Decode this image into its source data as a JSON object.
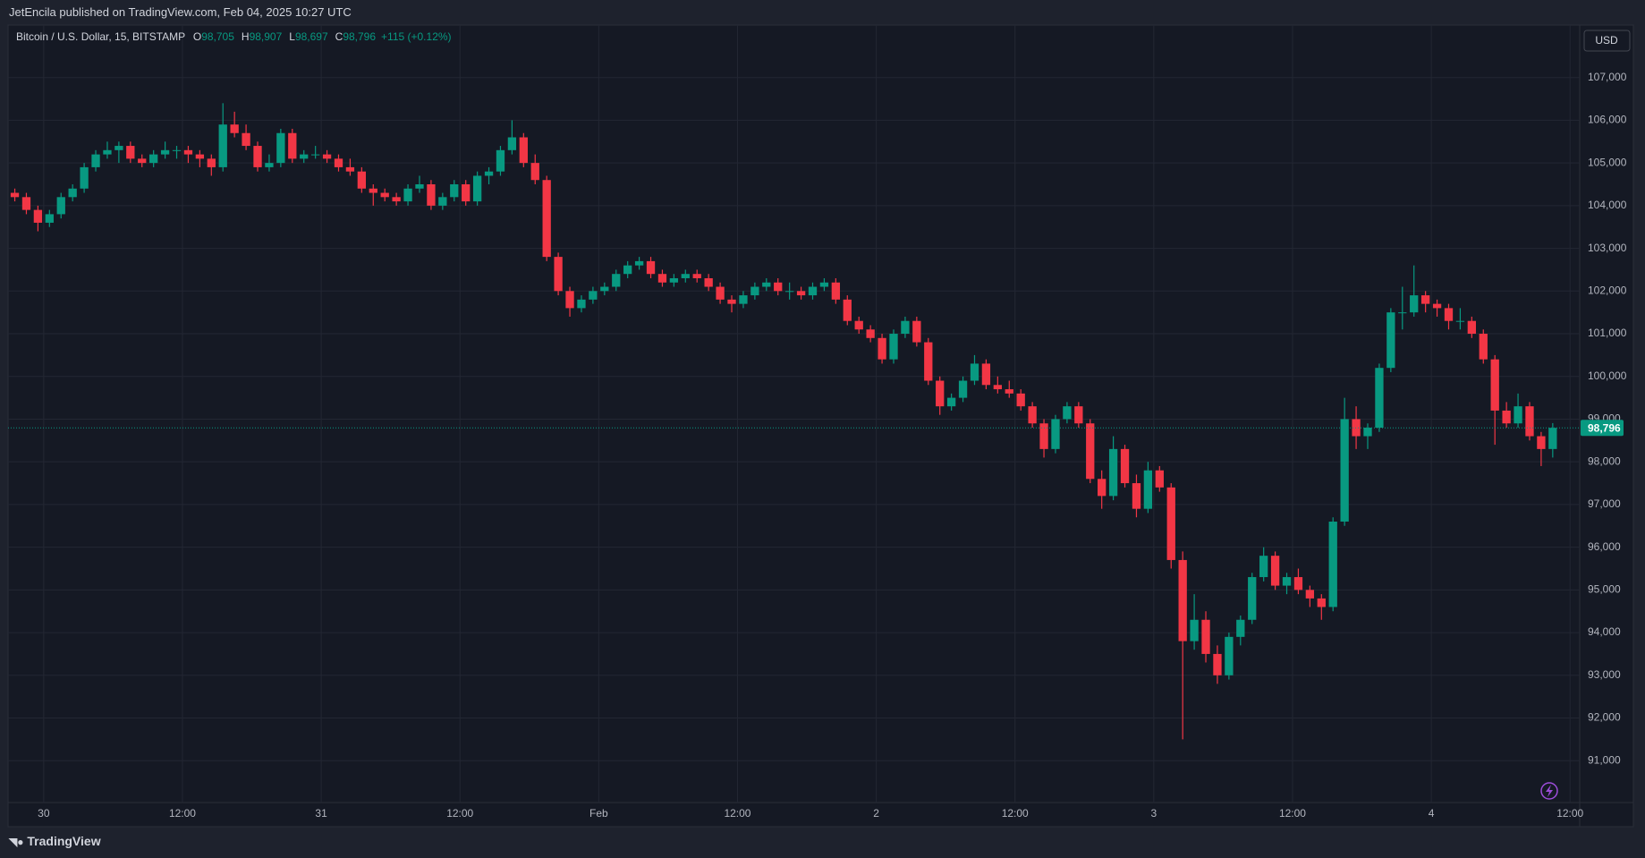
{
  "header": {
    "published": "JetEncila published on TradingView.com, Feb 04, 2025 10:27 UTC",
    "brand": "TradingView"
  },
  "chart_data": {
    "type": "candlestick",
    "title": "Bitcoin / U.S. Dollar, 15, BITSTAMP",
    "legend": [
      {
        "key": "O",
        "value": 98705,
        "label": "98,705"
      },
      {
        "key": "H",
        "value": 98907,
        "label": "98,907"
      },
      {
        "key": "L",
        "value": 98697,
        "label": "98,697"
      },
      {
        "key": "C",
        "value": 98796,
        "label": "98,796"
      }
    ],
    "change": "+115 (+0.12%)",
    "currency": "USD",
    "up_color": "#089981",
    "down_color": "#f23645",
    "grid": true,
    "last_price": {
      "value": 98796,
      "label": "98,796"
    },
    "xlim": [
      "01-29 20:55",
      "02-04 12:50"
    ],
    "xticks": [
      {
        "value": "01-30 00:00",
        "label": "30"
      },
      {
        "value": "01-30 12:00",
        "label": "12:00"
      },
      {
        "value": "01-31 00:00",
        "label": "31"
      },
      {
        "value": "01-31 12:00",
        "label": "12:00"
      },
      {
        "value": "02-01 00:00",
        "label": "Feb"
      },
      {
        "value": "02-01 12:00",
        "label": "12:00"
      },
      {
        "value": "02-02 00:00",
        "label": "2"
      },
      {
        "value": "02-02 12:00",
        "label": "12:00"
      },
      {
        "value": "02-03 00:00",
        "label": "3"
      },
      {
        "value": "02-03 12:00",
        "label": "12:00"
      },
      {
        "value": "02-04 00:00",
        "label": "4"
      },
      {
        "value": "02-04 12:00",
        "label": "12:00"
      }
    ],
    "ylim": [
      90020,
      108230
    ],
    "yticks": [
      {
        "value": 91000,
        "label": "91,000"
      },
      {
        "value": 92000,
        "label": "92,000"
      },
      {
        "value": 93000,
        "label": "93,000"
      },
      {
        "value": 94000,
        "label": "94,000"
      },
      {
        "value": 95000,
        "label": "95,000"
      },
      {
        "value": 96000,
        "label": "96,000"
      },
      {
        "value": 97000,
        "label": "97,000"
      },
      {
        "value": 98000,
        "label": "98,000"
      },
      {
        "value": 99000,
        "label": "99,000"
      },
      {
        "value": 100000,
        "label": "100,000"
      },
      {
        "value": 101000,
        "label": "101,000"
      },
      {
        "value": 102000,
        "label": "102,000"
      },
      {
        "value": 103000,
        "label": "103,000"
      },
      {
        "value": 104000,
        "label": "104,000"
      },
      {
        "value": 105000,
        "label": "105,000"
      },
      {
        "value": 106000,
        "label": "106,000"
      },
      {
        "value": 107000,
        "label": "107,000"
      }
    ],
    "x": [
      "01-29 21:00",
      "01-29 22:00",
      "01-29 23:00",
      "01-30 00:00",
      "01-30 01:00",
      "01-30 02:00",
      "01-30 03:00",
      "01-30 04:00",
      "01-30 05:00",
      "01-30 06:00",
      "01-30 07:00",
      "01-30 08:00",
      "01-30 09:00",
      "01-30 10:00",
      "01-30 11:00",
      "01-30 12:00",
      "01-30 13:00",
      "01-30 14:00",
      "01-30 15:00",
      "01-30 16:00",
      "01-30 17:00",
      "01-30 18:00",
      "01-30 19:00",
      "01-30 20:00",
      "01-30 21:00",
      "01-30 22:00",
      "01-30 23:00",
      "01-31 00:00",
      "01-31 01:00",
      "01-31 02:00",
      "01-31 03:00",
      "01-31 04:00",
      "01-31 05:00",
      "01-31 06:00",
      "01-31 07:00",
      "01-31 08:00",
      "01-31 09:00",
      "01-31 10:00",
      "01-31 11:00",
      "01-31 12:00",
      "01-31 13:00",
      "01-31 14:00",
      "01-31 15:00",
      "01-31 16:00",
      "01-31 17:00",
      "01-31 18:00",
      "01-31 19:00",
      "01-31 20:00",
      "01-31 21:00",
      "01-31 22:00",
      "01-31 23:00",
      "02-01 00:00",
      "02-01 01:00",
      "02-01 02:00",
      "02-01 03:00",
      "02-01 04:00",
      "02-01 05:00",
      "02-01 06:00",
      "02-01 07:00",
      "02-01 08:00",
      "02-01 09:00",
      "02-01 10:00",
      "02-01 11:00",
      "02-01 12:00",
      "02-01 13:00",
      "02-01 14:00",
      "02-01 15:00",
      "02-01 16:00",
      "02-01 17:00",
      "02-01 18:00",
      "02-01 19:00",
      "02-01 20:00",
      "02-01 21:00",
      "02-01 22:00",
      "02-01 23:00",
      "02-02 00:00",
      "02-02 01:00",
      "02-02 02:00",
      "02-02 03:00",
      "02-02 04:00",
      "02-02 05:00",
      "02-02 06:00",
      "02-02 07:00",
      "02-02 08:00",
      "02-02 09:00",
      "02-02 10:00",
      "02-02 11:00",
      "02-02 12:00",
      "02-02 13:00",
      "02-02 14:00",
      "02-02 15:00",
      "02-02 16:00",
      "02-02 17:00",
      "02-02 18:00",
      "02-02 19:00",
      "02-02 20:00",
      "02-02 21:00",
      "02-02 22:00",
      "02-02 23:00",
      "02-03 00:00",
      "02-03 01:00",
      "02-03 02:00",
      "02-03 03:00",
      "02-03 04:00",
      "02-03 05:00",
      "02-03 06:00",
      "02-03 07:00",
      "02-03 08:00",
      "02-03 09:00",
      "02-03 10:00",
      "02-03 11:00",
      "02-03 12:00",
      "02-03 13:00",
      "02-03 14:00",
      "02-03 15:00",
      "02-03 16:00",
      "02-03 17:00",
      "02-03 18:00",
      "02-03 19:00",
      "02-03 20:00",
      "02-03 21:00",
      "02-03 22:00",
      "02-03 23:00",
      "02-04 00:00",
      "02-04 01:00",
      "02-04 02:00",
      "02-04 03:00",
      "02-04 04:00",
      "02-04 05:00",
      "02-04 06:00",
      "02-04 07:00",
      "02-04 08:00",
      "02-04 09:00",
      "02-04 10:00"
    ],
    "ohlc": [
      [
        104300,
        104400,
        104100,
        104200
      ],
      [
        104200,
        104300,
        103800,
        103900
      ],
      [
        103900,
        104000,
        103400,
        103600
      ],
      [
        103600,
        103900,
        103500,
        103800
      ],
      [
        103800,
        104300,
        103700,
        104200
      ],
      [
        104200,
        104500,
        104100,
        104400
      ],
      [
        104400,
        105000,
        104300,
        104900
      ],
      [
        104900,
        105300,
        104800,
        105200
      ],
      [
        105200,
        105500,
        105100,
        105300
      ],
      [
        105300,
        105500,
        105000,
        105400
      ],
      [
        105400,
        105500,
        105000,
        105100
      ],
      [
        105100,
        105200,
        104900,
        105000
      ],
      [
        105000,
        105300,
        104900,
        105200
      ],
      [
        105200,
        105500,
        105100,
        105300
      ],
      [
        105300,
        105400,
        105100,
        105300
      ],
      [
        105300,
        105400,
        105000,
        105200
      ],
      [
        105200,
        105300,
        104900,
        105100
      ],
      [
        105100,
        105200,
        104700,
        104900
      ],
      [
        104900,
        106400,
        104800,
        105900
      ],
      [
        105900,
        106200,
        105600,
        105700
      ],
      [
        105700,
        105900,
        105300,
        105400
      ],
      [
        105400,
        105500,
        104800,
        104900
      ],
      [
        104900,
        105200,
        104800,
        105000
      ],
      [
        105000,
        105800,
        104900,
        105700
      ],
      [
        105700,
        105800,
        105000,
        105100
      ],
      [
        105100,
        105300,
        105000,
        105200
      ],
      [
        105200,
        105400,
        105100,
        105200
      ],
      [
        105200,
        105300,
        105000,
        105100
      ],
      [
        105100,
        105200,
        104800,
        104900
      ],
      [
        104900,
        105100,
        104700,
        104800
      ],
      [
        104800,
        104900,
        104300,
        104400
      ],
      [
        104400,
        104500,
        104000,
        104300
      ],
      [
        104300,
        104400,
        104100,
        104200
      ],
      [
        104200,
        104300,
        104000,
        104100
      ],
      [
        104100,
        104500,
        104000,
        104400
      ],
      [
        104400,
        104700,
        104300,
        104500
      ],
      [
        104500,
        104600,
        103900,
        104000
      ],
      [
        104000,
        104300,
        103900,
        104200
      ],
      [
        104200,
        104600,
        104100,
        104500
      ],
      [
        104500,
        104600,
        104000,
        104100
      ],
      [
        104100,
        104800,
        104000,
        104700
      ],
      [
        104700,
        104900,
        104500,
        104800
      ],
      [
        104800,
        105400,
        104700,
        105300
      ],
      [
        105300,
        106000,
        105200,
        105600
      ],
      [
        105600,
        105700,
        104900,
        105000
      ],
      [
        105000,
        105200,
        104500,
        104600
      ],
      [
        104600,
        104700,
        102700,
        102800
      ],
      [
        102800,
        102900,
        101900,
        102000
      ],
      [
        102000,
        102100,
        101400,
        101600
      ],
      [
        101600,
        101900,
        101500,
        101800
      ],
      [
        101800,
        102100,
        101700,
        102000
      ],
      [
        102000,
        102200,
        101900,
        102100
      ],
      [
        102100,
        102500,
        102000,
        102400
      ],
      [
        102400,
        102700,
        102300,
        102600
      ],
      [
        102600,
        102800,
        102500,
        102700
      ],
      [
        102700,
        102800,
        102300,
        102400
      ],
      [
        102400,
        102500,
        102100,
        102200
      ],
      [
        102200,
        102400,
        102100,
        102300
      ],
      [
        102300,
        102500,
        102200,
        102400
      ],
      [
        102400,
        102500,
        102200,
        102300
      ],
      [
        102300,
        102400,
        102000,
        102100
      ],
      [
        102100,
        102200,
        101700,
        101800
      ],
      [
        101800,
        101900,
        101500,
        101700
      ],
      [
        101700,
        102000,
        101600,
        101900
      ],
      [
        101900,
        102200,
        101800,
        102100
      ],
      [
        102100,
        102300,
        102000,
        102200
      ],
      [
        102200,
        102300,
        101900,
        102000
      ],
      [
        102000,
        102200,
        101800,
        102000
      ],
      [
        102000,
        102100,
        101800,
        101900
      ],
      [
        101900,
        102200,
        101800,
        102100
      ],
      [
        102100,
        102300,
        102000,
        102200
      ],
      [
        102200,
        102300,
        101700,
        101800
      ],
      [
        101800,
        101900,
        101200,
        101300
      ],
      [
        101300,
        101400,
        101000,
        101100
      ],
      [
        101100,
        101200,
        100800,
        100900
      ],
      [
        100900,
        101000,
        100300,
        100400
      ],
      [
        100400,
        101100,
        100300,
        101000
      ],
      [
        101000,
        101400,
        100900,
        101300
      ],
      [
        101300,
        101400,
        100700,
        100800
      ],
      [
        100800,
        100900,
        99800,
        99900
      ],
      [
        99900,
        100000,
        99100,
        99300
      ],
      [
        99300,
        99600,
        99200,
        99500
      ],
      [
        99500,
        100000,
        99400,
        99900
      ],
      [
        99900,
        100500,
        99800,
        100300
      ],
      [
        100300,
        100400,
        99700,
        99800
      ],
      [
        99800,
        100000,
        99600,
        99700
      ],
      [
        99700,
        99900,
        99500,
        99600
      ],
      [
        99600,
        99700,
        99200,
        99300
      ],
      [
        99300,
        99400,
        98800,
        98900
      ],
      [
        98900,
        99000,
        98100,
        98300
      ],
      [
        98300,
        99100,
        98200,
        99000
      ],
      [
        99000,
        99400,
        98900,
        99300
      ],
      [
        99300,
        99400,
        98800,
        98900
      ],
      [
        98900,
        99000,
        97500,
        97600
      ],
      [
        97600,
        97800,
        96900,
        97200
      ],
      [
        97200,
        98600,
        97100,
        98300
      ],
      [
        98300,
        98400,
        97400,
        97500
      ],
      [
        97500,
        97700,
        96700,
        96900
      ],
      [
        96900,
        98000,
        96800,
        97800
      ],
      [
        97800,
        97900,
        97300,
        97400
      ],
      [
        97400,
        97500,
        95500,
        95700
      ],
      [
        95700,
        95900,
        91500,
        93800
      ],
      [
        93800,
        94900,
        93600,
        94300
      ],
      [
        94300,
        94500,
        93300,
        93500
      ],
      [
        93500,
        93700,
        92800,
        93000
      ],
      [
        93000,
        94000,
        92900,
        93900
      ],
      [
        93900,
        94400,
        93700,
        94300
      ],
      [
        94300,
        95400,
        94200,
        95300
      ],
      [
        95300,
        96000,
        95200,
        95800
      ],
      [
        95800,
        95900,
        95000,
        95100
      ],
      [
        95100,
        95400,
        94900,
        95300
      ],
      [
        95300,
        95500,
        94900,
        95000
      ],
      [
        95000,
        95100,
        94600,
        94800
      ],
      [
        94800,
        94900,
        94300,
        94600
      ],
      [
        94600,
        96700,
        94500,
        96600
      ],
      [
        96600,
        99500,
        96500,
        99000
      ],
      [
        99000,
        99300,
        98300,
        98600
      ],
      [
        98600,
        98900,
        98300,
        98800
      ],
      [
        98800,
        100300,
        98700,
        100200
      ],
      [
        100200,
        101600,
        100100,
        101500
      ],
      [
        101500,
        102100,
        101100,
        101500
      ],
      [
        101500,
        102600,
        101400,
        101900
      ],
      [
        101900,
        102000,
        101500,
        101700
      ],
      [
        101700,
        101800,
        101400,
        101600
      ],
      [
        101600,
        101700,
        101100,
        101300
      ],
      [
        101300,
        101600,
        101100,
        101300
      ],
      [
        101300,
        101400,
        100900,
        101000
      ],
      [
        101000,
        101100,
        100300,
        100400
      ],
      [
        100400,
        100500,
        98400,
        99200
      ],
      [
        99200,
        99400,
        98800,
        98900
      ],
      [
        98900,
        99600,
        98800,
        99300
      ],
      [
        99300,
        99400,
        98500,
        98600
      ],
      [
        98600,
        98700,
        97900,
        98300
      ],
      [
        98300,
        98907,
        98100,
        98796
      ]
    ]
  }
}
